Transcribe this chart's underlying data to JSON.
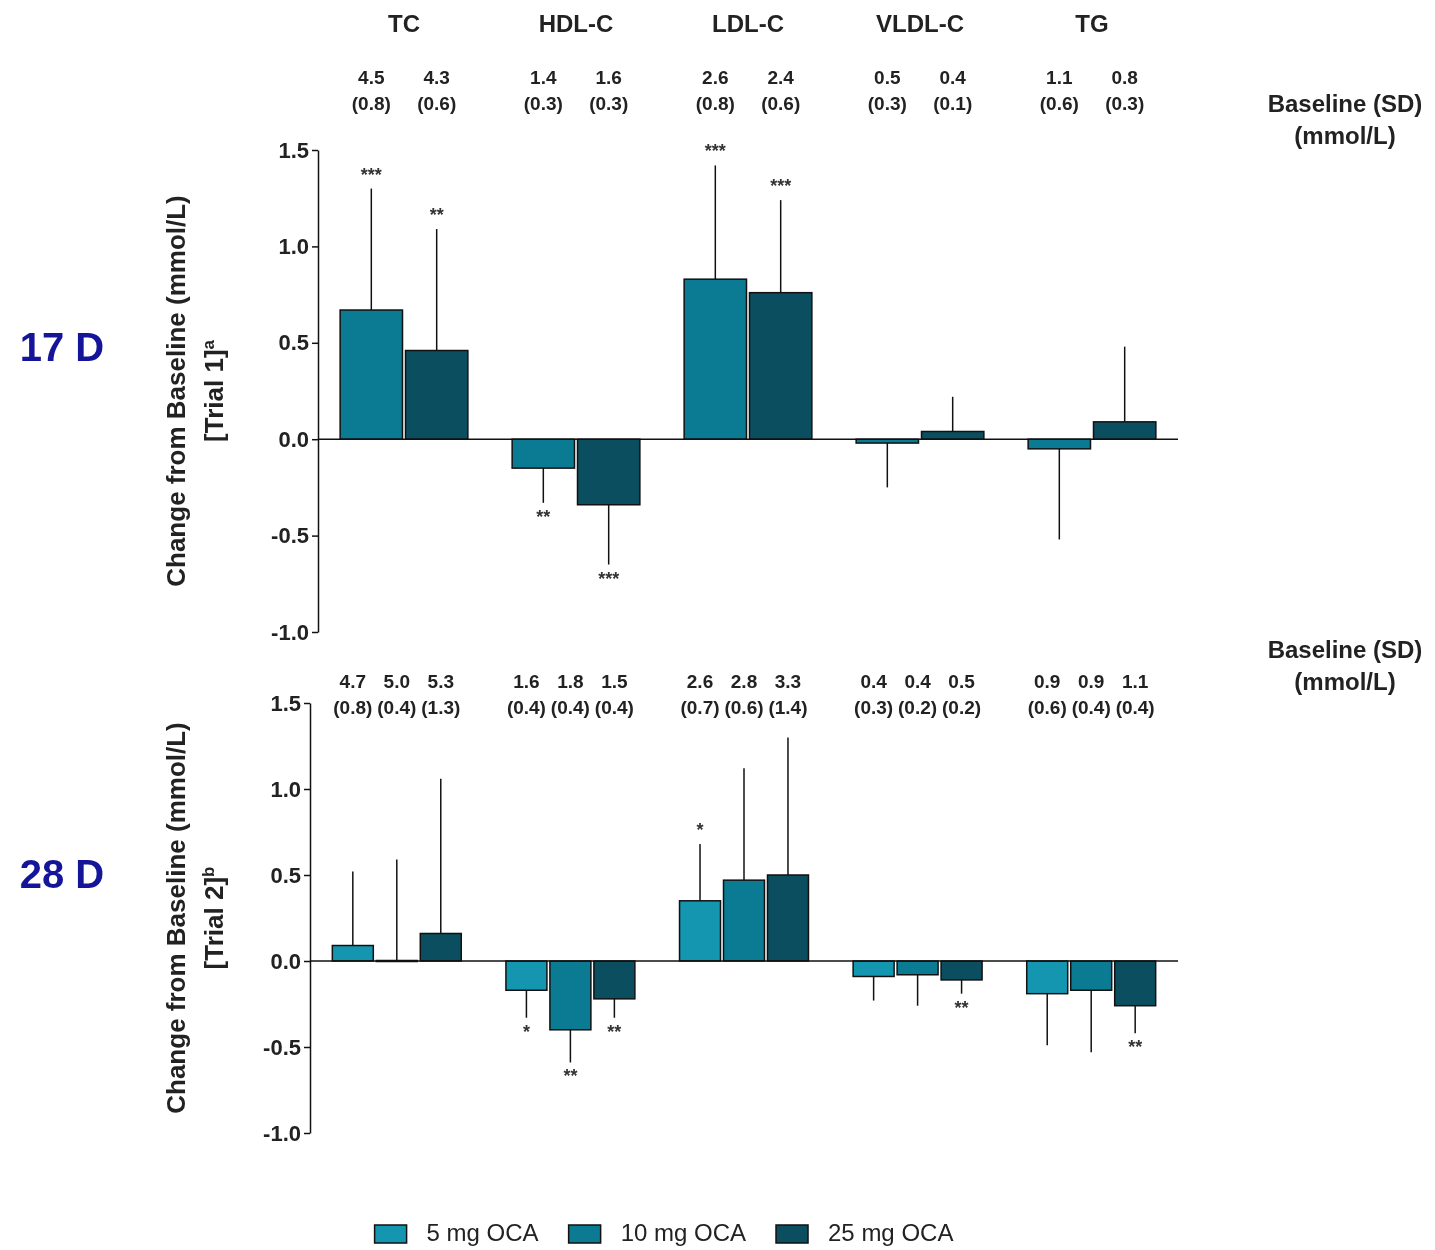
{
  "chart_data": [
    {
      "type": "bar",
      "title": "17 D",
      "ylabel": "Change from Baseline (mmol/L)\n[Trial 1]$^{a}$",
      "categories": [
        "TC",
        "HDL-C",
        "LDL-C",
        "VLDL-C",
        "TG"
      ],
      "ylim": [
        -1.0,
        1.5
      ],
      "yticks": [
        {
          "value": -1,
          "label": "-1.0"
        },
        -0.5,
        {
          "value": 0,
          "label": "0.0"
        },
        0.5,
        {
          "value": 1,
          "label": "1.0"
        },
        1.5
      ],
      "legend": false,
      "series": [
        {
          "color": "#0b7b93",
          "values": [
            0.67,
            -0.15,
            0.83,
            -0.02,
            -0.05
          ],
          "errors": [
            [
              0.67,
              1.3
            ],
            [
              -0.33,
              -0.15
            ],
            [
              0.83,
              1.42
            ],
            [
              -0.25,
              -0.02
            ],
            [
              -0.52,
              -0.05
            ]
          ]
        },
        {
          "color": "#0a4e5f",
          "values": [
            0.46,
            -0.34,
            0.76,
            0.04,
            0.09
          ],
          "errors": [
            [
              0.46,
              1.09
            ],
            [
              -0.65,
              -0.34
            ],
            [
              0.76,
              1.24
            ],
            [
              0.04,
              0.22
            ],
            [
              0.09,
              0.48
            ]
          ]
        }
      ],
      "annotations": [
        "Baseline (SD)\n(mmol/L)",
        "4.5\n(0.8)",
        "4.3\n(0.6)",
        "1.4\n(0.3)",
        "1.6\n(0.3)",
        "2.6\n(0.8)",
        "2.4\n(0.6)",
        "0.5\n(0.3)",
        "0.4\n(0.1)",
        "1.1\n(0.6)",
        "0.8\n(0.3)",
        "***",
        "**",
        "**",
        "***",
        "***",
        "***"
      ]
    },
    {
      "type": "bar",
      "title": "28 D",
      "ylabel": "Change from Baseline (mmol/L)\n[Trial 2]$^{b}$",
      "categories": [
        null,
        null,
        null,
        null,
        null
      ],
      "ylim": [
        -1.0,
        1.5
      ],
      "yticks": [
        {
          "value": -1,
          "label": "-1.0"
        },
        -0.5,
        {
          "value": 0,
          "label": "0.0"
        },
        0.5,
        {
          "value": 1,
          "label": "1.0"
        },
        1.5
      ],
      "legend": "bottom",
      "series": [
        {
          "name": "5 mg OCA",
          "color": "#1596b0",
          "values": [
            0.09,
            -0.17,
            0.35,
            -0.09,
            -0.19
          ],
          "errors": [
            [
              0.09,
              0.52
            ],
            [
              -0.33,
              -0.17
            ],
            [
              0.35,
              0.68
            ],
            [
              -0.23,
              -0.09
            ],
            [
              -0.49,
              -0.19
            ]
          ]
        },
        {
          "name": "10 mg OCA",
          "color": "#0b7b93",
          "values": [
            0,
            -0.4,
            0.47,
            -0.08,
            -0.17
          ],
          "errors": [
            [
              0,
              0.59
            ],
            [
              -0.59,
              -0.4
            ],
            [
              0.47,
              1.12
            ],
            [
              -0.26,
              -0.08
            ],
            [
              -0.53,
              -0.17
            ]
          ]
        },
        {
          "name": "25 mg OCA",
          "color": "#0a4e5f",
          "values": [
            0.16,
            -0.22,
            0.5,
            -0.11,
            -0.26
          ],
          "errors": [
            [
              0.16,
              1.06
            ],
            [
              -0.33,
              -0.22
            ],
            [
              0.5,
              1.3
            ],
            [
              -0.19,
              -0.11
            ],
            [
              -0.42,
              -0.26
            ]
          ]
        }
      ],
      "annotations": [
        "Baseline (SD)\n(mmol/L)",
        "4.7\n(0.8)",
        "5.0\n(0.4)",
        "5.3\n(1.3)",
        "1.6\n(0.4)",
        "1.8\n(0.4)",
        "1.5\n(0.4)",
        "2.6\n(0.7)",
        "2.8\n(0.6)",
        "3.3\n(1.4)",
        "0.4\n(0.3)",
        "0.4\n(0.2)",
        "0.5\n(0.2)",
        "0.9\n(0.6)",
        "0.9\n(0.4)",
        "1.1\n(0.4)",
        "*",
        "**",
        "**",
        "*",
        "**",
        "**"
      ]
    }
  ]
}
